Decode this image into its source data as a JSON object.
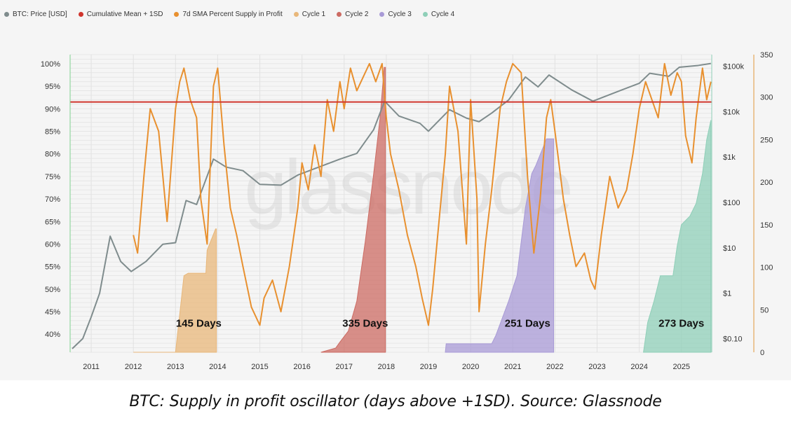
{
  "legend": [
    {
      "label": "BTC: Price [USD]",
      "color": "#7f8c8d"
    },
    {
      "label": "Cumulative Mean + 1SD",
      "color": "#d0342c"
    },
    {
      "label": "7d SMA Percent Supply in Profit",
      "color": "#e8902f"
    },
    {
      "label": "Cycle 1",
      "color": "#e8b77a"
    },
    {
      "label": "Cycle 2",
      "color": "#cc6b63"
    },
    {
      "label": "Cycle 3",
      "color": "#a89ad6"
    },
    {
      "label": "Cycle 4",
      "color": "#8fcfb8"
    }
  ],
  "watermark": "glassnode",
  "caption": "BTC: Supply in profit oscillator (days above +1SD). Source: Glassnode",
  "chart_data": {
    "type": "line",
    "x_range": [
      2010.5,
      2025.72
    ],
    "x_ticks": [
      2011,
      2012,
      2013,
      2014,
      2015,
      2016,
      2017,
      2018,
      2019,
      2020,
      2021,
      2022,
      2023,
      2024,
      2025
    ],
    "left_axis": {
      "range": [
        36,
        102
      ],
      "ticks": [
        40,
        45,
        50,
        55,
        60,
        65,
        70,
        75,
        80,
        85,
        90,
        95,
        100
      ],
      "tick_labels": [
        "40%",
        "45%",
        "50%",
        "55%",
        "60%",
        "65%",
        "70%",
        "75%",
        "80%",
        "85%",
        "90%",
        "95%",
        "100%"
      ]
    },
    "price_axis": {
      "scale": "log",
      "range": [
        0.05,
        180000
      ],
      "ticks": [
        0.1,
        1,
        10,
        100,
        1000,
        10000,
        100000
      ],
      "tick_labels": [
        "$0.10",
        "$1",
        "$10",
        "$100",
        "$1k",
        "$10k",
        "$100k"
      ]
    },
    "days_axis": {
      "range": [
        0,
        350
      ],
      "ticks": [
        0,
        50,
        100,
        150,
        200,
        250,
        300,
        350
      ]
    },
    "threshold": {
      "name": "Cumulative Mean + 1SD",
      "value": 91.5
    },
    "price_series": {
      "name": "BTC: Price [USD]",
      "x": [
        2010.55,
        2010.8,
        2011.0,
        2011.2,
        2011.45,
        2011.7,
        2011.95,
        2012.3,
        2012.7,
        2013.0,
        2013.25,
        2013.5,
        2013.9,
        2014.2,
        2014.6,
        2015.0,
        2015.5,
        2015.9,
        2016.4,
        2016.9,
        2017.3,
        2017.7,
        2017.96,
        2018.3,
        2018.8,
        2019.0,
        2019.5,
        2019.9,
        2020.2,
        2020.5,
        2020.9,
        2021.3,
        2021.6,
        2021.86,
        2022.4,
        2022.9,
        2023.5,
        2024.0,
        2024.25,
        2024.7,
        2024.95,
        2025.4,
        2025.7
      ],
      "y": [
        0.06,
        0.1,
        0.3,
        1,
        18,
        5,
        3,
        5,
        12,
        13,
        110,
        90,
        900,
        600,
        500,
        250,
        240,
        400,
        600,
        900,
        1200,
        4000,
        17000,
        8000,
        5500,
        3700,
        11000,
        7200,
        6000,
        9300,
        18000,
        58000,
        35000,
        64000,
        30000,
        17000,
        28000,
        42000,
        70000,
        60000,
        95000,
        104000,
        115000
      ]
    },
    "supply_series": {
      "name": "7d SMA Percent Supply in Profit",
      "x": [
        2012.0,
        2012.1,
        2012.25,
        2012.4,
        2012.6,
        2012.8,
        2013.0,
        2013.1,
        2013.2,
        2013.35,
        2013.5,
        2013.6,
        2013.75,
        2013.9,
        2014.0,
        2014.15,
        2014.3,
        2014.45,
        2014.6,
        2014.8,
        2015.0,
        2015.1,
        2015.3,
        2015.5,
        2015.7,
        2015.9,
        2016.0,
        2016.15,
        2016.3,
        2016.45,
        2016.6,
        2016.75,
        2016.9,
        2017.0,
        2017.15,
        2017.3,
        2017.45,
        2017.6,
        2017.75,
        2017.9,
        2018.0,
        2018.1,
        2018.3,
        2018.5,
        2018.7,
        2018.85,
        2019.0,
        2019.1,
        2019.25,
        2019.4,
        2019.5,
        2019.7,
        2019.9,
        2020.0,
        2020.15,
        2020.2,
        2020.35,
        2020.5,
        2020.7,
        2020.85,
        2021.0,
        2021.2,
        2021.35,
        2021.5,
        2021.65,
        2021.8,
        2021.9,
        2022.0,
        2022.2,
        2022.35,
        2022.5,
        2022.7,
        2022.85,
        2022.95,
        2023.1,
        2023.3,
        2023.5,
        2023.7,
        2023.85,
        2024.0,
        2024.15,
        2024.3,
        2024.45,
        2024.6,
        2024.75,
        2024.9,
        2025.0,
        2025.1,
        2025.25,
        2025.35,
        2025.5,
        2025.6,
        2025.7
      ],
      "y": [
        62,
        58,
        75,
        90,
        85,
        65,
        90,
        96,
        99,
        92,
        88,
        70,
        60,
        95,
        99,
        82,
        68,
        62,
        55,
        46,
        42,
        48,
        52,
        45,
        55,
        68,
        78,
        72,
        82,
        75,
        92,
        85,
        96,
        90,
        99,
        94,
        97,
        100,
        96,
        100,
        88,
        80,
        72,
        62,
        55,
        48,
        42,
        50,
        65,
        80,
        95,
        85,
        60,
        92,
        70,
        45,
        60,
        72,
        90,
        96,
        100,
        98,
        75,
        58,
        70,
        88,
        92,
        85,
        70,
        62,
        55,
        58,
        52,
        50,
        62,
        75,
        68,
        72,
        80,
        90,
        96,
        92,
        88,
        100,
        93,
        98,
        96,
        84,
        78,
        88,
        99,
        92,
        96
      ]
    },
    "cycles": [
      {
        "name": "Cycle 1",
        "label": "145 Days",
        "x": [
          2012.0,
          2012.95,
          2013.0,
          2013.2,
          2013.3,
          2013.72,
          2013.75,
          2013.95,
          2013.97
        ],
        "y": [
          0,
          0,
          0,
          90,
          93,
          93,
          120,
          145,
          145
        ]
      },
      {
        "name": "Cycle 2",
        "label": "335 Days",
        "x": [
          2016.45,
          2016.8,
          2016.9,
          2017.1,
          2017.3,
          2017.5,
          2017.7,
          2017.85,
          2017.95,
          2017.98
        ],
        "y": [
          0,
          5,
          12,
          25,
          60,
          130,
          210,
          275,
          335,
          335
        ]
      },
      {
        "name": "Cycle 3",
        "label": "251 Days",
        "x": [
          2019.4,
          2019.42,
          2020.5,
          2020.6,
          2020.9,
          2021.1,
          2021.3,
          2021.45,
          2021.55,
          2021.8,
          2021.95,
          2021.97
        ],
        "y": [
          0,
          10,
          10,
          20,
          60,
          90,
          170,
          210,
          220,
          251,
          251,
          251
        ]
      },
      {
        "name": "Cycle 4",
        "label": "273 Days",
        "x": [
          2024.1,
          2024.2,
          2024.35,
          2024.5,
          2024.8,
          2024.9,
          2025.0,
          2025.2,
          2025.35,
          2025.5,
          2025.6,
          2025.7
        ],
        "y": [
          0,
          35,
          60,
          90,
          90,
          125,
          150,
          160,
          175,
          210,
          250,
          273
        ]
      }
    ]
  }
}
